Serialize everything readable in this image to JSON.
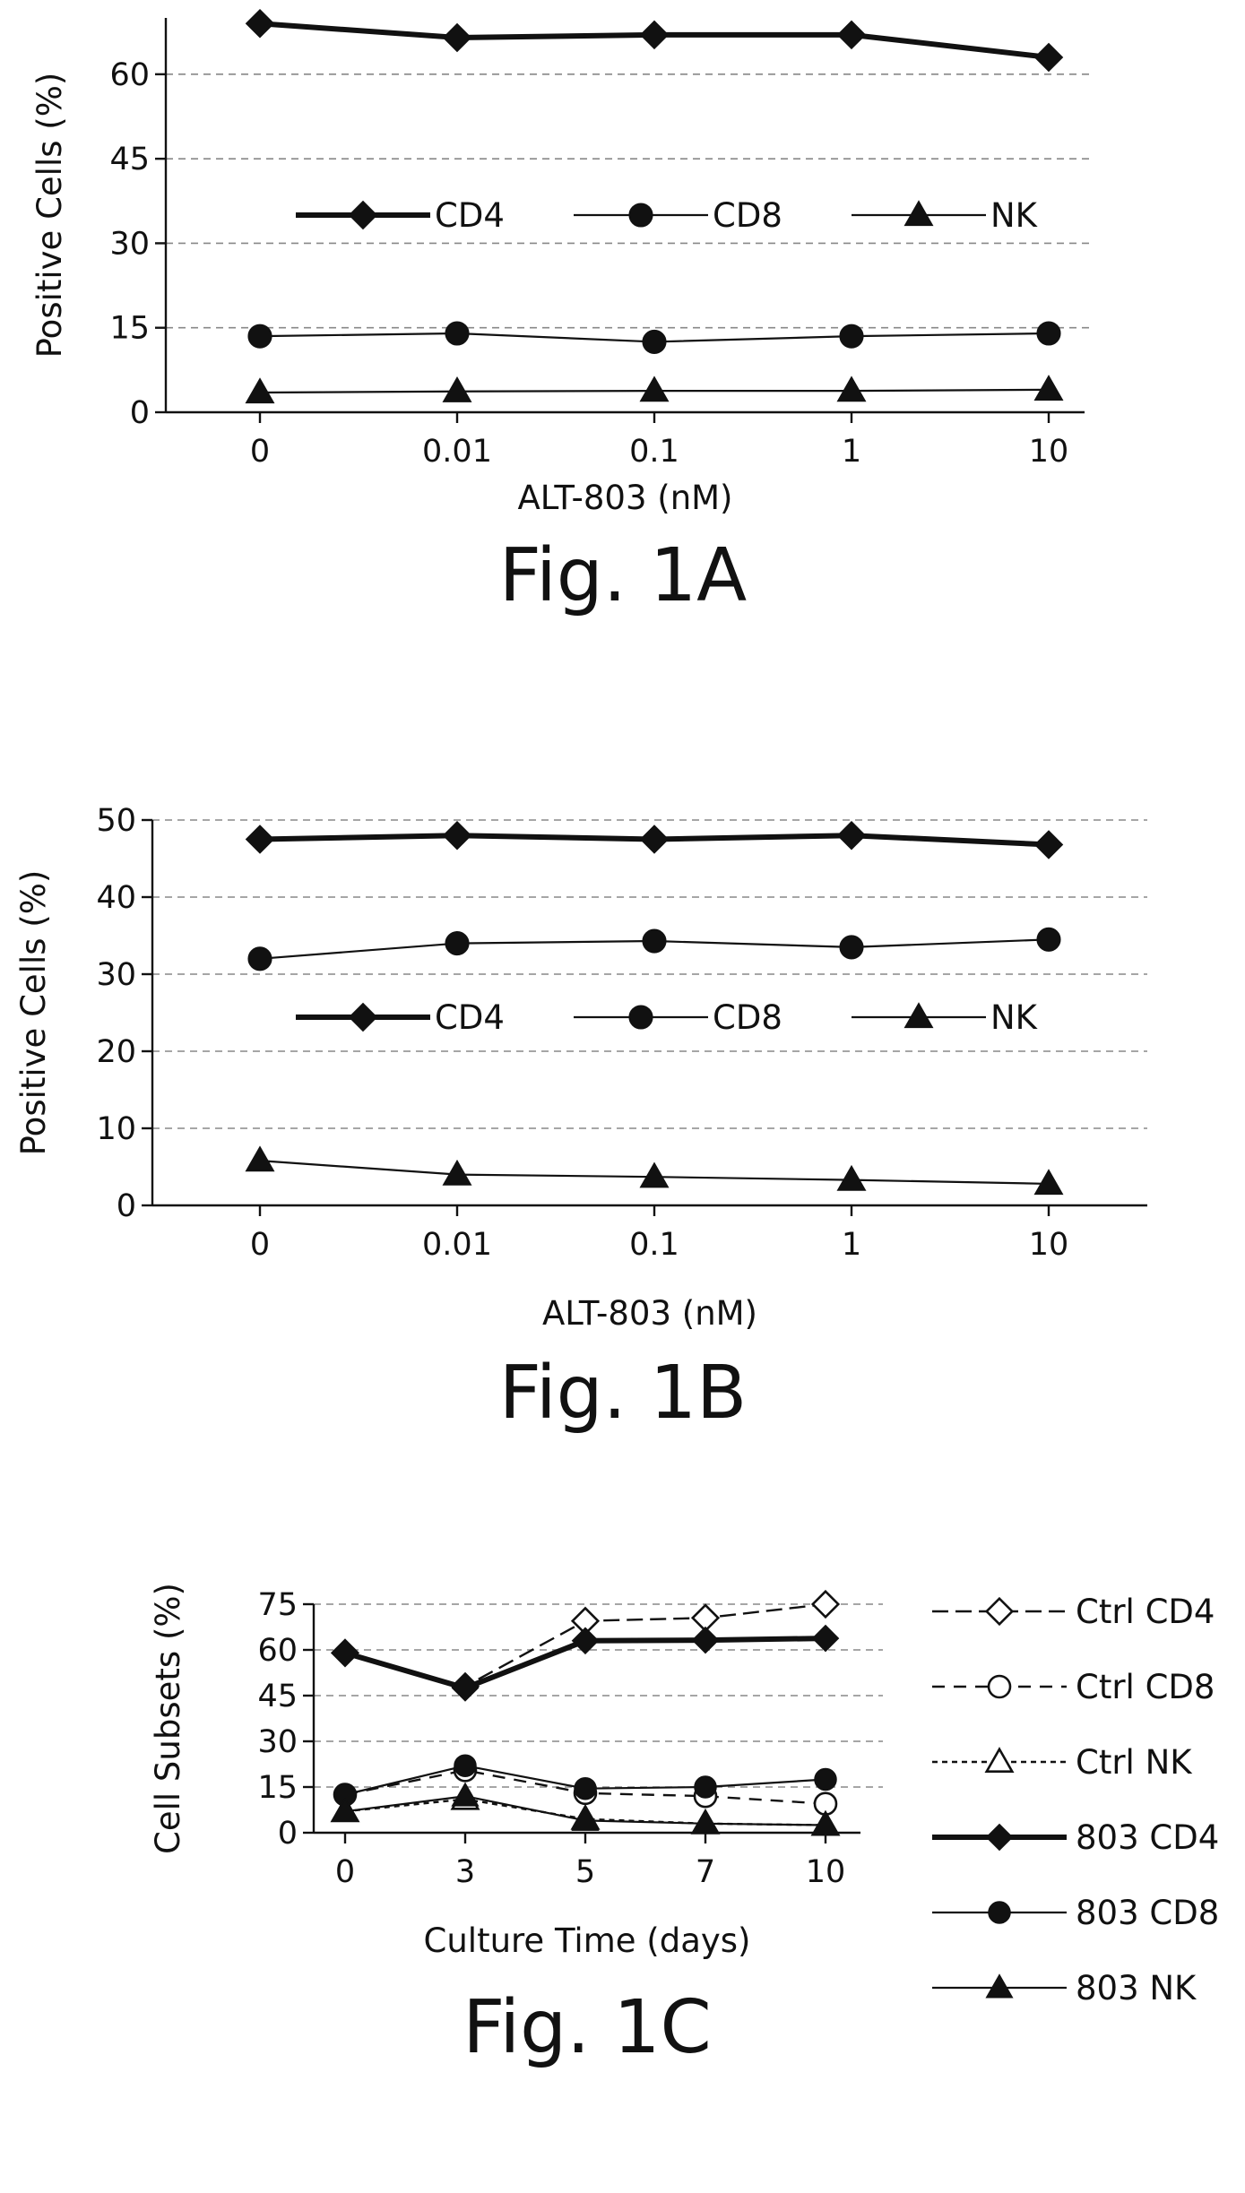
{
  "chart_data": [
    {
      "type": "line",
      "figure_label": "Fig. 1A",
      "xlabel": "ALT-803 (nM)",
      "ylabel": "Positive Cells (%)",
      "categories": [
        "0",
        "0.01",
        "0.1",
        "1",
        "10"
      ],
      "ylim": [
        0,
        70
      ],
      "yticks": [
        0,
        15,
        30,
        45,
        60
      ],
      "grid": true,
      "legend_position": "middle, horizontal",
      "series": [
        {
          "name": "CD4",
          "marker": "diamond",
          "filled": true,
          "line": "solid-thick",
          "values": [
            69,
            66.5,
            67,
            67,
            63
          ]
        },
        {
          "name": "CD8",
          "marker": "circle",
          "filled": true,
          "line": "solid-thin",
          "values": [
            13.5,
            14,
            12.5,
            13.5,
            14
          ]
        },
        {
          "name": "NK",
          "marker": "triangle",
          "filled": true,
          "line": "solid-thin",
          "values": [
            3.5,
            3.7,
            3.8,
            3.8,
            4
          ]
        }
      ]
    },
    {
      "type": "line",
      "figure_label": "Fig. 1B",
      "xlabel": "ALT-803 (nM)",
      "ylabel": "Positive Cells (%)",
      "categories": [
        "0",
        "0.01",
        "0.1",
        "1",
        "10"
      ],
      "ylim": [
        0,
        50
      ],
      "yticks": [
        0,
        10,
        20,
        30,
        40,
        50
      ],
      "grid": true,
      "legend_position": "middle, horizontal",
      "series": [
        {
          "name": "CD4",
          "marker": "diamond",
          "filled": true,
          "line": "solid-thick",
          "values": [
            47.5,
            48,
            47.5,
            48,
            46.8
          ]
        },
        {
          "name": "CD8",
          "marker": "circle",
          "filled": true,
          "line": "solid-thin",
          "values": [
            32,
            34,
            34.3,
            33.5,
            34.5
          ]
        },
        {
          "name": "NK",
          "marker": "triangle",
          "filled": true,
          "line": "solid-thin",
          "values": [
            5.8,
            4,
            3.7,
            3.3,
            2.8
          ]
        }
      ]
    },
    {
      "type": "line",
      "figure_label": "Fig. 1C",
      "xlabel": "Culture Time (days)",
      "ylabel": "Cell Subsets (%)",
      "categories": [
        "0",
        "3",
        "5",
        "7",
        "10"
      ],
      "ylim": [
        0,
        75
      ],
      "yticks": [
        0,
        15,
        30,
        45,
        60,
        75
      ],
      "grid": true,
      "legend_position": "right, vertical",
      "series": [
        {
          "name": "Ctrl CD4",
          "marker": "diamond",
          "filled": false,
          "line": "long-dash",
          "values": [
            59,
            48,
            69.5,
            70.5,
            75
          ]
        },
        {
          "name": "Ctrl CD8",
          "marker": "circle",
          "filled": false,
          "line": "dash",
          "values": [
            12.5,
            20.5,
            13,
            12,
            9.5
          ]
        },
        {
          "name": "Ctrl NK",
          "marker": "triangle",
          "filled": false,
          "line": "short-dash",
          "values": [
            7,
            11,
            4.5,
            3,
            2.5
          ]
        },
        {
          "name": "803 CD4",
          "marker": "diamond",
          "filled": true,
          "line": "solid-thick",
          "values": [
            59,
            47.5,
            63,
            63.2,
            63.8
          ]
        },
        {
          "name": "803 CD8",
          "marker": "circle",
          "filled": true,
          "line": "solid-thin",
          "values": [
            12.5,
            22,
            14.5,
            15,
            17.5
          ]
        },
        {
          "name": "803 NK",
          "marker": "triangle",
          "filled": true,
          "line": "solid-thin",
          "values": [
            7,
            12,
            4,
            3,
            2.5
          ]
        }
      ]
    }
  ]
}
